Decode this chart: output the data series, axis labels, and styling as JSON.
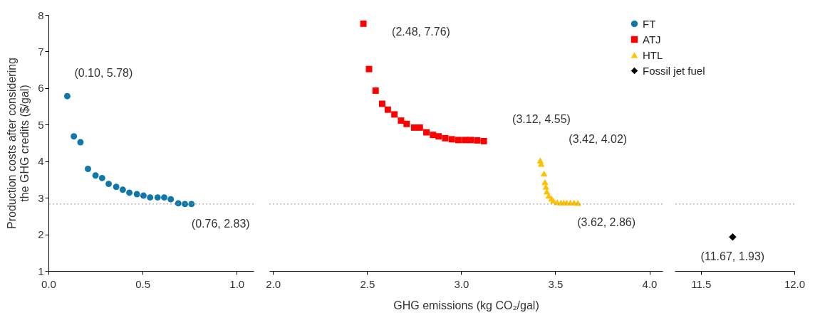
{
  "chart_data": [
    {
      "type": "scatter",
      "ylabel": "Production costs after considering\nthe GHG credits ($/gal)",
      "xlim": [
        0,
        1.09
      ],
      "ylim": [
        1,
        8
      ],
      "xticks": [
        {
          "value": 0,
          "label": "0.0"
        },
        {
          "value": 0.5,
          "label": "0.5"
        },
        {
          "value": 1,
          "label": "1.0"
        }
      ],
      "yticks": [
        1,
        2,
        3,
        4,
        5,
        6,
        7,
        8
      ],
      "series": [
        {
          "name": "FT",
          "color": "#0f77aa",
          "marker": "circle",
          "x": [
            0.1,
            0.135,
            0.17,
            0.21,
            0.25,
            0.285,
            0.32,
            0.36,
            0.395,
            0.43,
            0.47,
            0.505,
            0.54,
            0.58,
            0.615,
            0.65,
            0.69,
            0.725,
            0.76
          ],
          "values": [
            5.78,
            4.68,
            4.52,
            3.79,
            3.61,
            3.54,
            3.38,
            3.3,
            3.22,
            3.14,
            3.1,
            3.06,
            3.01,
            3.01,
            3.01,
            2.96,
            2.85,
            2.83,
            2.83
          ]
        }
      ],
      "ref_lines": [
        {
          "axis": "y",
          "value": 2.83,
          "color": "#999999",
          "line_style": "dotted"
        }
      ],
      "annotations": [
        {
          "text": "(0.10, 5.78)",
          "x": 0.1,
          "y": 5.78
        },
        {
          "text": "(0.76, 2.83)",
          "x": 0.76,
          "y": 2.83
        }
      ]
    },
    {
      "type": "scatter",
      "xlabel": "GHG emissions (kg CO₂/gal)",
      "tick_labels": "x",
      "legend": "top right",
      "xlim": [
        1.98,
        4.07
      ],
      "ylim": [
        1,
        8
      ],
      "xticks": [
        {
          "value": 2,
          "label": "2.0"
        },
        {
          "value": 2.5,
          "label": "2.5"
        },
        {
          "value": 3,
          "label": "3.0"
        },
        {
          "value": 3.5,
          "label": "3.5"
        },
        {
          "value": 4,
          "label": "4.0"
        }
      ],
      "series": [
        {
          "name": "ATJ",
          "color": "#ff0000",
          "marker": "square",
          "x": [
            2.48,
            2.51,
            2.545,
            2.58,
            2.61,
            2.645,
            2.68,
            2.71,
            2.75,
            2.78,
            2.815,
            2.85,
            2.88,
            2.915,
            2.95,
            2.985,
            3.02,
            3.05,
            3.085,
            3.12
          ],
          "values": [
            7.76,
            6.52,
            5.93,
            5.57,
            5.41,
            5.28,
            5.11,
            5.02,
            4.92,
            4.92,
            4.79,
            4.72,
            4.68,
            4.63,
            4.6,
            4.58,
            4.58,
            4.58,
            4.57,
            4.55
          ]
        },
        {
          "name": "HTL",
          "color": "#ffc000",
          "marker": "triangle",
          "x": [
            3.42,
            3.425,
            3.44,
            3.445,
            3.45,
            3.455,
            3.465,
            3.48,
            3.49,
            3.51,
            3.53,
            3.545,
            3.56,
            3.58,
            3.6,
            3.62
          ],
          "values": [
            4.02,
            3.93,
            3.66,
            3.43,
            3.3,
            3.17,
            3.06,
            2.98,
            2.92,
            2.88,
            2.87,
            2.87,
            2.87,
            2.87,
            2.87,
            2.86
          ]
        }
      ],
      "ref_lines": [
        {
          "axis": "y",
          "value": 2.83,
          "color": "#999999",
          "line_style": "dotted"
        }
      ],
      "annotations": [
        {
          "text": "(2.48, 7.76)",
          "x": 2.48,
          "y": 7.76
        },
        {
          "text": "(3.12, 4.55)",
          "x": 3.12,
          "y": 4.55
        },
        {
          "text": "(3.42, 4.02)",
          "x": 3.42,
          "y": 4.02
        },
        {
          "text": "(3.62, 2.86)",
          "x": 3.62,
          "y": 2.86
        }
      ]
    },
    {
      "type": "scatter",
      "tick_labels": "x",
      "xlim": [
        11.36,
        12
      ],
      "ylim": [
        1,
        8
      ],
      "xticks": [
        11.5,
        {
          "value": 12,
          "label": "12.0"
        }
      ],
      "series": [
        {
          "name": "Fossil jet fuel",
          "color": "#000000",
          "marker": "diamond",
          "x": [
            11.67
          ],
          "values": [
            1.93
          ]
        }
      ],
      "ref_lines": [
        {
          "axis": "y",
          "value": 2.83,
          "color": "#999999",
          "line_style": "dotted"
        }
      ],
      "annotations": [
        {
          "text": "(11.67, 1.93)",
          "x": 11.67,
          "y": 1.93
        }
      ]
    }
  ]
}
